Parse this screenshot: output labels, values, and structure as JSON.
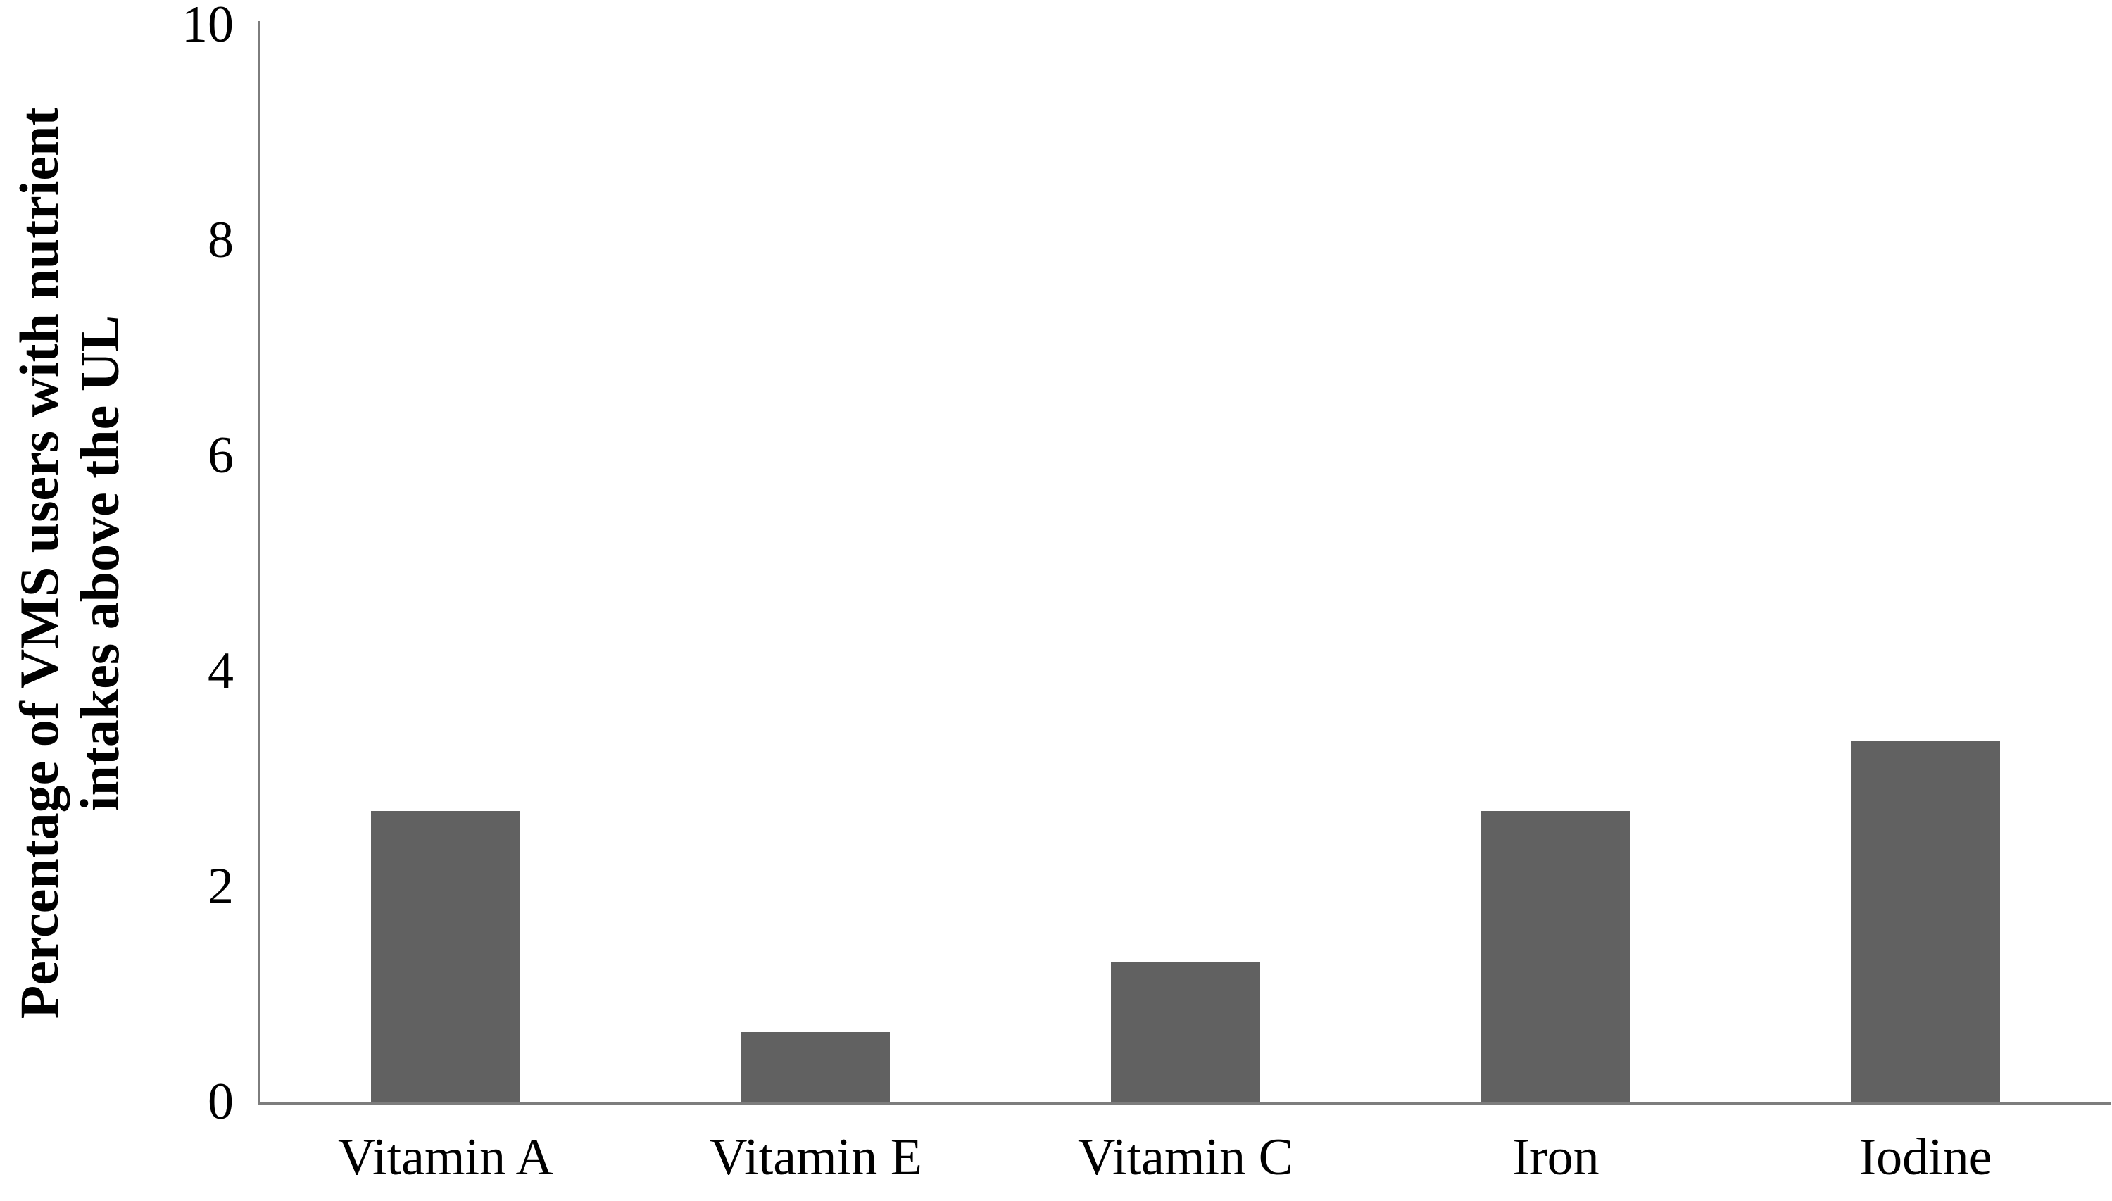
{
  "chart_data": {
    "type": "bar",
    "title": "",
    "xlabel": "",
    "ylabel": "Percentage of VMS users with nutrient intakes above the UL",
    "ylabel_lines": [
      "Percentage of VMS users with nutrient",
      "intakes above the UL"
    ],
    "categories": [
      "Vitamin A",
      "Vitamin E",
      "Vitamin C",
      "Iron",
      "Iodine"
    ],
    "values": [
      2.7,
      0.65,
      1.3,
      2.7,
      3.35
    ],
    "ylim": [
      0,
      10
    ],
    "yticks": [
      0,
      2,
      4,
      6,
      8,
      10
    ],
    "grid": false,
    "legend": false,
    "bar_color": "#616161",
    "axis_color": "#7d7d7d",
    "text_color": "#000000"
  }
}
